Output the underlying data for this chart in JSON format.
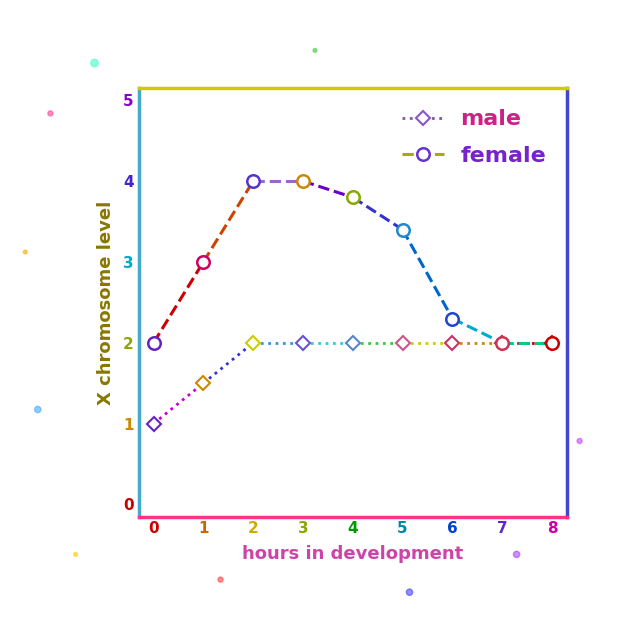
{
  "male_x": [
    0,
    1,
    2,
    3,
    4,
    5,
    6,
    7,
    8
  ],
  "male_y": [
    1.0,
    1.5,
    2.0,
    2.0,
    2.0,
    2.0,
    2.0,
    2.0,
    2.0
  ],
  "female_x": [
    0,
    1,
    2,
    3,
    4,
    5,
    6,
    7,
    8
  ],
  "female_y": [
    2.0,
    3.0,
    4.0,
    4.0,
    3.8,
    3.4,
    2.3,
    2.0,
    2.0
  ],
  "xlabel": "hours in development",
  "ylabel": "X chromosome level",
  "xticks": [
    0,
    1,
    2,
    3,
    4,
    5,
    6,
    7,
    8
  ],
  "yticks": [
    0,
    1,
    2,
    3,
    4,
    5
  ],
  "male_label": "male",
  "female_label": "female",
  "xlabel_color": "#cc44aa",
  "ylabel_color": "#887700",
  "bg_color": "#ffffff",
  "figsize": [
    6.3,
    6.3
  ],
  "dpi": 100,
  "rainbow_male_line": [
    "#cc00cc",
    "#3333cc",
    "#3399cc",
    "#33cccc",
    "#33cc33",
    "#cccc00",
    "#cc8800",
    "#cc0000"
  ],
  "rainbow_female_line": [
    "#cc0000",
    "#cc4400",
    "#9966cc",
    "#6600cc",
    "#3333cc",
    "#0066cc",
    "#00aacc",
    "#00cc88"
  ],
  "male_marker_colors": [
    "#6622cc",
    "#cc8800",
    "#cccc00",
    "#6655cc",
    "#5588cc",
    "#cc5588",
    "#cc3366",
    "#cc1144",
    "#cc0000"
  ],
  "female_marker_colors": [
    "#6622bb",
    "#cc0066",
    "#5533cc",
    "#cc8800",
    "#88aa00",
    "#2288cc",
    "#2244cc",
    "#cc3355",
    "#cc0000"
  ],
  "x_tick_colors": [
    "#cc0000",
    "#cc6600",
    "#ccaa00",
    "#88aa00",
    "#009900",
    "#0088aa",
    "#0044cc",
    "#6622cc",
    "#cc00aa"
  ],
  "y_tick_colors": [
    "#cc0000",
    "#cc8800",
    "#88aa00",
    "#00aacc",
    "#4422cc",
    "#8800cc"
  ],
  "spine_colors": {
    "bottom": "#ff3388",
    "top": "#cccc00",
    "left": "#44aacc",
    "right": "#4444cc"
  },
  "legend_male_color": "#cc2288",
  "legend_female_color": "#7722cc"
}
